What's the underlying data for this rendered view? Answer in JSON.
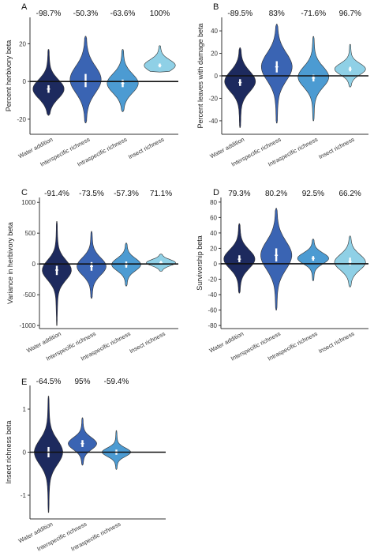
{
  "chart_data": [
    {
      "type": "violin",
      "panel": "A",
      "ylabel": "Percent herbivory beta",
      "ylim": [
        -28,
        34
      ],
      "yticks": [
        -20,
        0,
        20
      ],
      "ytick_labels": [
        "-20",
        "0",
        "20"
      ],
      "categories": [
        "Water addition",
        "Interspecific richness",
        "Intraspecific richness",
        "Insect richness"
      ],
      "percent_labels": [
        "-98.7%",
        "-50.3%",
        "-63.6%",
        "100%"
      ],
      "colors": [
        "#1d2a5e",
        "#3a64b3",
        "#4c9bd2",
        "#8fd0e6"
      ],
      "violins": [
        {
          "median": -4,
          "q1": -6,
          "q3": -2,
          "min": -18,
          "max": 17,
          "mode": -4,
          "spread": 5
        },
        {
          "median": 0,
          "q1": -3,
          "q3": 4,
          "min": -22,
          "max": 24,
          "mode": 1,
          "spread": 7
        },
        {
          "median": -1,
          "q1": -3,
          "q3": 1,
          "min": -16,
          "max": 17,
          "mode": -1,
          "spread": 5
        },
        {
          "median": 8.5,
          "q1": 7.5,
          "q3": 9.5,
          "min": 5,
          "max": 19,
          "mode": 8.5,
          "spread": 3
        }
      ]
    },
    {
      "type": "violin",
      "panel": "B",
      "ylabel": "Percent leaves with damage beta",
      "ylim": [
        -52,
        52
      ],
      "yticks": [
        -40,
        -20,
        0,
        20,
        40
      ],
      "ytick_labels": [
        "-40",
        "-20",
        "0",
        "20",
        "40"
      ],
      "categories": [
        "Water addition",
        "Interspecific richness",
        "Intraspecific richness",
        "Insect richness"
      ],
      "percent_labels": [
        "-89.5%",
        "83%",
        "-71.6%",
        "96.7%"
      ],
      "colors": [
        "#1d2a5e",
        "#3a64b3",
        "#4c9bd2",
        "#8fd0e6"
      ],
      "violins": [
        {
          "median": -6,
          "q1": -9,
          "q3": -3,
          "min": -46,
          "max": 25,
          "mode": -5,
          "spread": 9
        },
        {
          "median": 8,
          "q1": 3,
          "q3": 13,
          "min": -42,
          "max": 46,
          "mode": 8,
          "spread": 12
        },
        {
          "median": -2,
          "q1": -5,
          "q3": 1,
          "min": -40,
          "max": 35,
          "mode": -1,
          "spread": 9
        },
        {
          "median": 6,
          "q1": 4,
          "q3": 8,
          "min": -10,
          "max": 28,
          "mode": 6,
          "spread": 5
        }
      ]
    },
    {
      "type": "violin",
      "panel": "C",
      "ylabel": "Variance in herbivory beta",
      "ylim": [
        -1050,
        1080
      ],
      "yticks": [
        -1000,
        -500,
        0,
        500,
        1000
      ],
      "ytick_labels": [
        "-1000",
        "-500",
        "0",
        "500",
        "1000"
      ],
      "categories": [
        "Water addition",
        "Interspecific richness",
        "Intraspecific richness",
        "Insect richness"
      ],
      "percent_labels": [
        "-91.4%",
        "-73.5%",
        "-57.3%",
        "71.1%"
      ],
      "colors": [
        "#1d2a5e",
        "#3a64b3",
        "#4c9bd2",
        "#8fd0e6"
      ],
      "violins": [
        {
          "median": -100,
          "q1": -180,
          "q3": -30,
          "min": -1000,
          "max": 690,
          "mode": -100,
          "spread": 160
        },
        {
          "median": -40,
          "q1": -110,
          "q3": 30,
          "min": -560,
          "max": 530,
          "mode": -40,
          "spread": 140
        },
        {
          "median": -10,
          "q1": -60,
          "q3": 40,
          "min": -360,
          "max": 340,
          "mode": -10,
          "spread": 100
        },
        {
          "median": 20,
          "q1": -10,
          "q3": 50,
          "min": -120,
          "max": 160,
          "mode": 20,
          "spread": 50
        }
      ]
    },
    {
      "type": "violin",
      "panel": "D",
      "ylabel": "Survivorship beta",
      "ylim": [
        -84,
        86
      ],
      "yticks": [
        -80,
        -60,
        -40,
        -20,
        0,
        20,
        40,
        60,
        80
      ],
      "ytick_labels": [
        "-80",
        "-60",
        "-40",
        "-20",
        "0",
        "20",
        "40",
        "60",
        "80"
      ],
      "categories": [
        "Water addition",
        "Interspecific richness",
        "Intraspecific richness",
        "Insect richness"
      ],
      "percent_labels": [
        "79.3%",
        "80.2%",
        "92.5%",
        "66.2%"
      ],
      "colors": [
        "#1d2a5e",
        "#3a64b3",
        "#4c9bd2",
        "#8fd0e6"
      ],
      "violins": [
        {
          "median": 6,
          "q1": 2,
          "q3": 11,
          "min": -38,
          "max": 52,
          "mode": 6,
          "spread": 12
        },
        {
          "median": 11,
          "q1": 3,
          "q3": 20,
          "min": -60,
          "max": 72,
          "mode": 11,
          "spread": 18
        },
        {
          "median": 7,
          "q1": 4,
          "q3": 10,
          "min": -22,
          "max": 32,
          "mode": 7,
          "spread": 7
        },
        {
          "median": 3,
          "q1": -2,
          "q3": 8,
          "min": -30,
          "max": 36,
          "mode": 2,
          "spread": 10
        }
      ]
    },
    {
      "type": "violin",
      "panel": "E",
      "ylabel": "Insect richness beta",
      "ylim": [
        -1.55,
        1.55
      ],
      "yticks": [
        -1,
        0,
        1
      ],
      "ytick_labels": [
        "-1",
        "0",
        "1"
      ],
      "categories": [
        "Water addition",
        "Interspecific richness",
        "Intraspecific richness"
      ],
      "percent_labels": [
        "-64.5%",
        "95%",
        "-59.4%"
      ],
      "colors": [
        "#1d2a5e",
        "#3a64b3",
        "#4c9bd2"
      ],
      "violins": [
        {
          "median": 0.0,
          "q1": -0.12,
          "q3": 0.12,
          "min": -1.4,
          "max": 1.3,
          "mode": 0.0,
          "spread": 0.28
        },
        {
          "median": 0.2,
          "q1": 0.12,
          "q3": 0.28,
          "min": -0.3,
          "max": 0.8,
          "mode": 0.2,
          "spread": 0.14
        },
        {
          "median": 0.0,
          "q1": -0.06,
          "q3": 0.06,
          "min": -0.4,
          "max": 0.5,
          "mode": 0.0,
          "spread": 0.1
        }
      ]
    }
  ]
}
